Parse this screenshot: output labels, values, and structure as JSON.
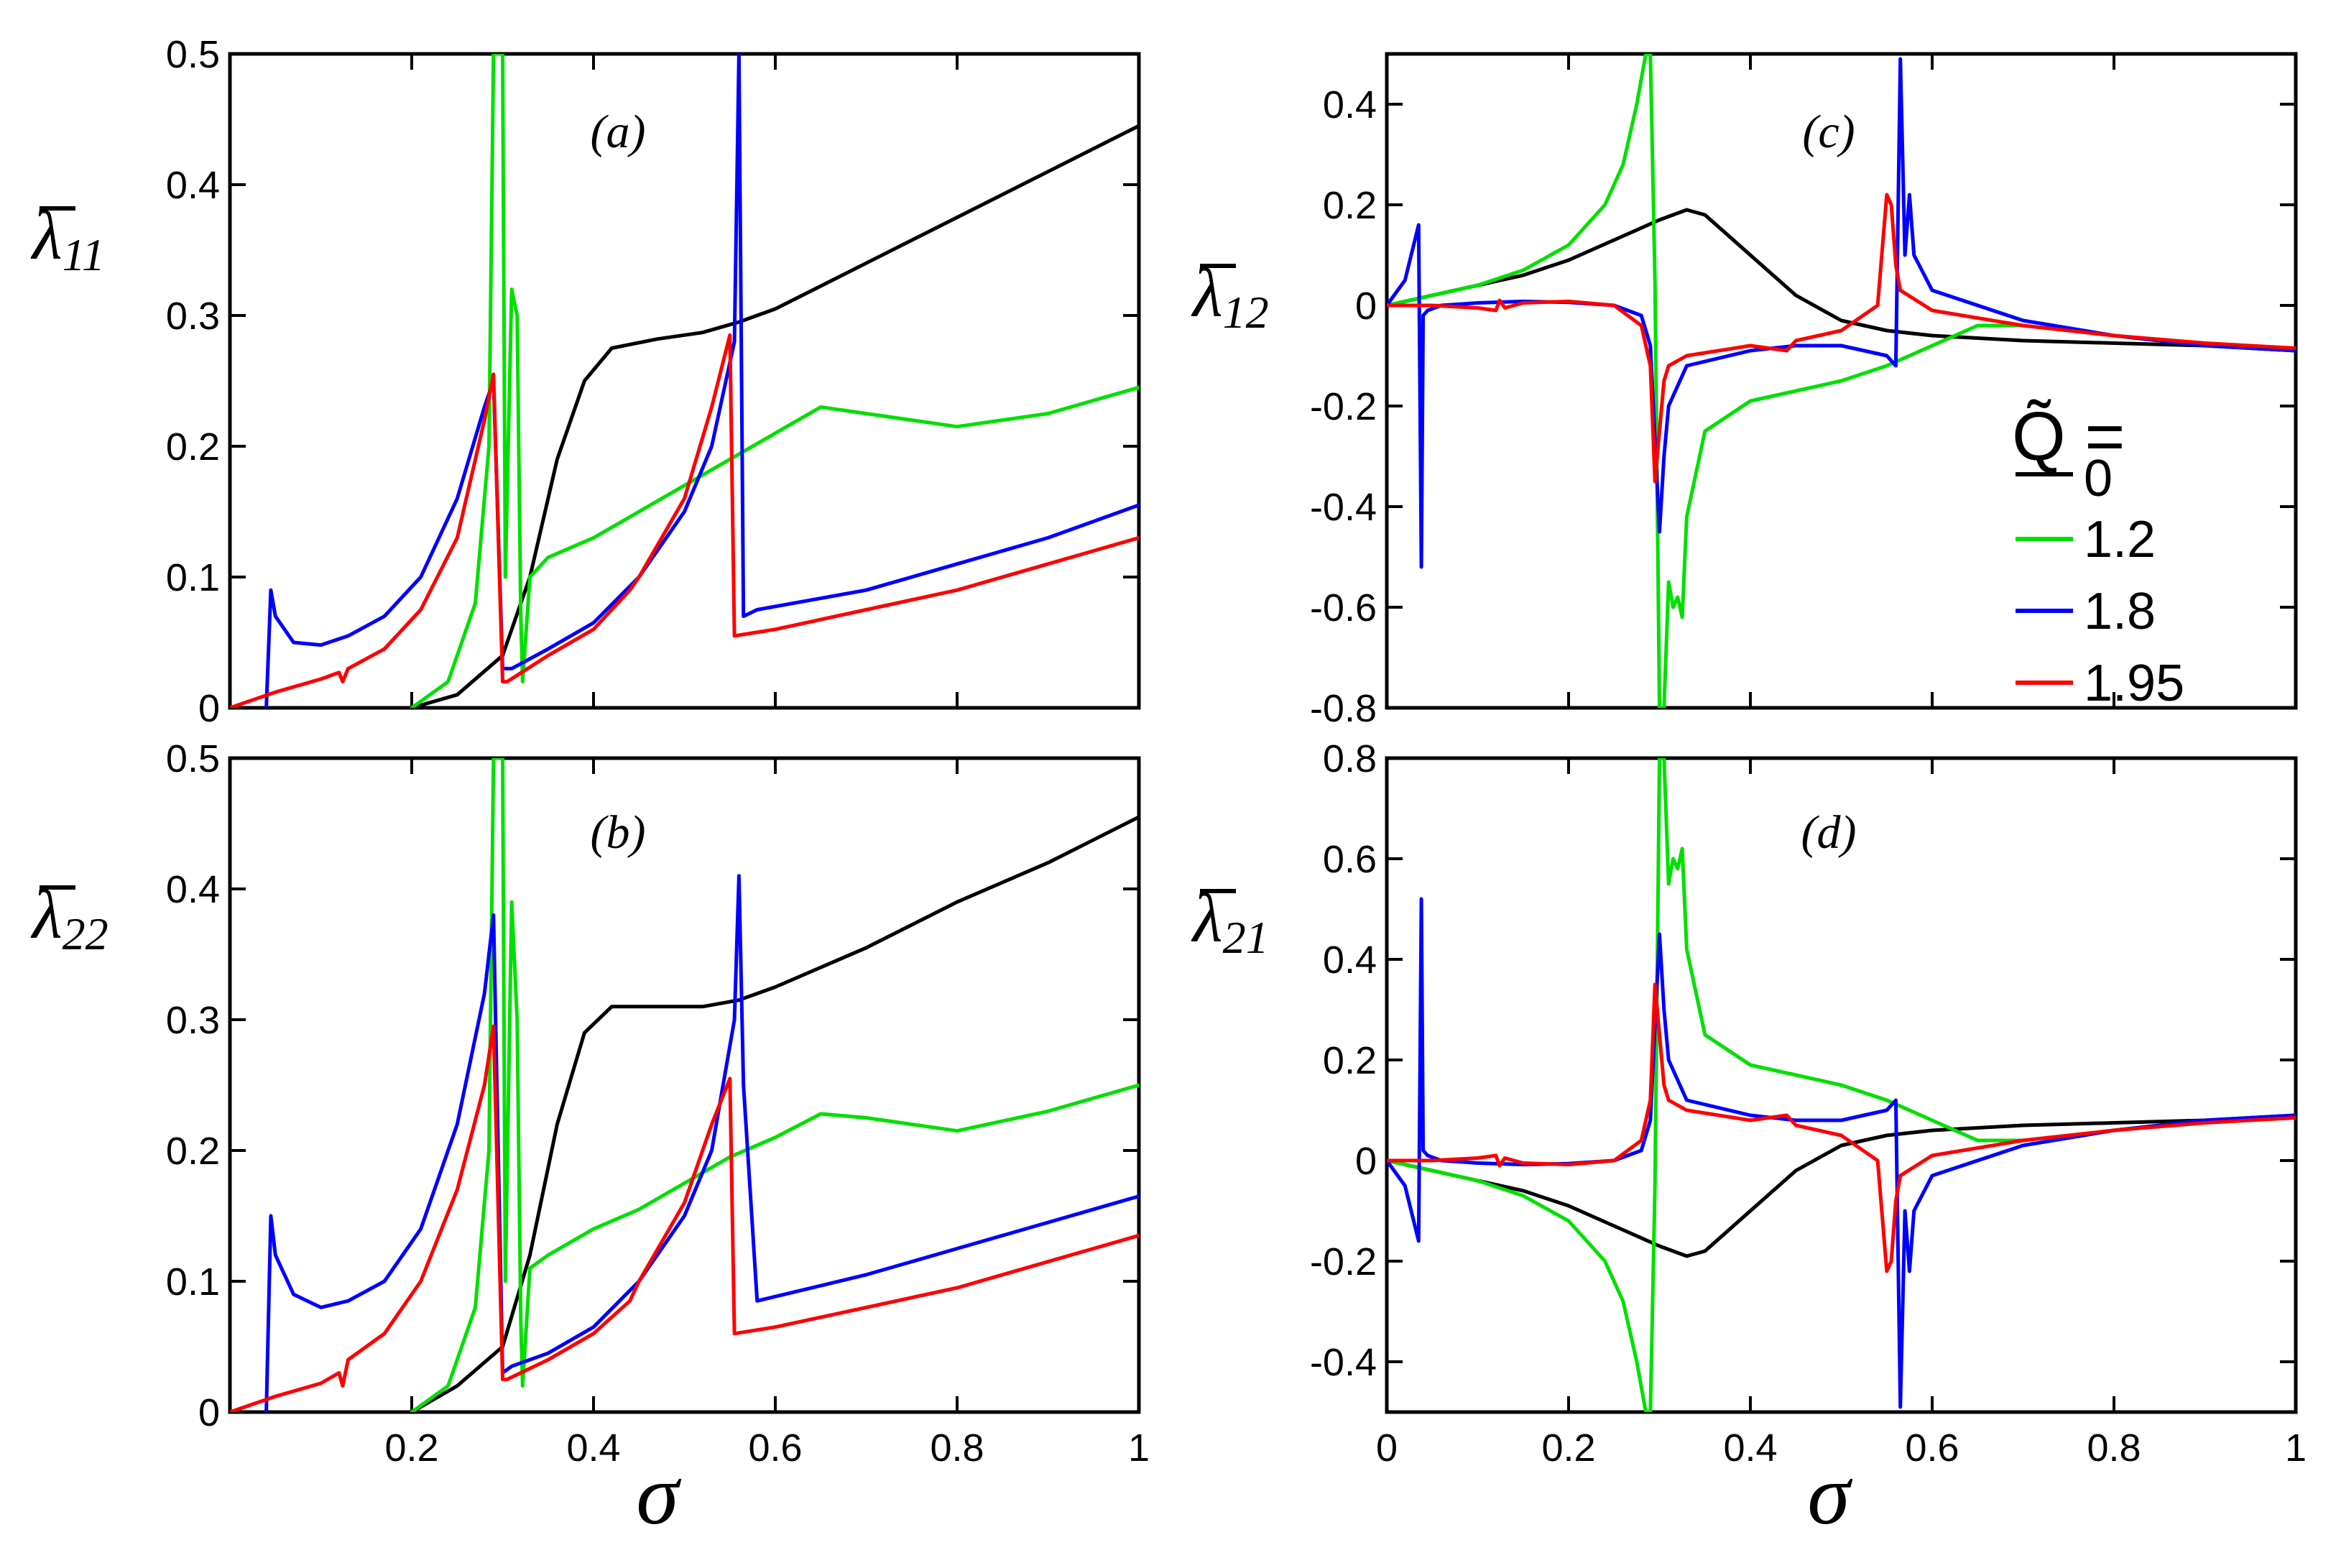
{
  "figure": {
    "xlabel": "σ",
    "legend": {
      "title": "Q̃ =",
      "entries": [
        {
          "label": "0",
          "color": "#000000"
        },
        {
          "label": "1.2",
          "color": "#00e000"
        },
        {
          "label": "1.8",
          "color": "#0000ff"
        },
        {
          "label": "1.95",
          "color": "#ff0000"
        }
      ]
    }
  },
  "chart_data": [
    {
      "type": "line",
      "panel": "(a)",
      "ylabel": "λ",
      "ylabel_sub": "11",
      "xlim": [
        0,
        1
      ],
      "ylim": [
        0,
        0.5
      ],
      "xticks": [
        0.2,
        0.4,
        0.6,
        0.8,
        1
      ],
      "xtick_labels": [
        "",
        "",
        "",
        "",
        ""
      ],
      "yticks": [
        0,
        0.1,
        0.2,
        0.3,
        0.4,
        0.5
      ],
      "ytick_labels": [
        "0",
        "0.1",
        "0.2",
        "0.3",
        "0.4",
        "0.5"
      ],
      "series": [
        {
          "name": "0",
          "color": "#000000",
          "x": [
            0.2,
            0.25,
            0.3,
            0.33,
            0.36,
            0.39,
            0.42,
            0.47,
            0.52,
            0.56,
            0.6,
            0.7,
            0.8,
            0.9,
            1.0
          ],
          "y": [
            0.0,
            0.01,
            0.04,
            0.1,
            0.19,
            0.25,
            0.275,
            0.282,
            0.287,
            0.295,
            0.305,
            0.34,
            0.375,
            0.41,
            0.445
          ]
        },
        {
          "name": "1.2",
          "color": "#00e000",
          "x": [
            0.2,
            0.24,
            0.27,
            0.285,
            0.29,
            0.3,
            0.303,
            0.31,
            0.316,
            0.32,
            0.322,
            0.33,
            0.35,
            0.4,
            0.45,
            0.5,
            0.55,
            0.6,
            0.65,
            0.7,
            0.8,
            0.9,
            1.0
          ],
          "y": [
            0.0,
            0.02,
            0.08,
            0.2,
            0.5,
            0.5,
            0.1,
            0.32,
            0.3,
            0.07,
            0.02,
            0.1,
            0.115,
            0.13,
            0.15,
            0.17,
            0.19,
            0.21,
            0.23,
            0.225,
            0.215,
            0.225,
            0.245
          ]
        },
        {
          "name": "1.8",
          "color": "#0000ff",
          "x": [
            0.04,
            0.045,
            0.05,
            0.07,
            0.1,
            0.13,
            0.17,
            0.21,
            0.25,
            0.28,
            0.29,
            0.3,
            0.31,
            0.35,
            0.4,
            0.45,
            0.5,
            0.53,
            0.555,
            0.56,
            0.565,
            0.58,
            0.7,
            0.8,
            0.9,
            1.0
          ],
          "y": [
            0.0,
            0.09,
            0.07,
            0.05,
            0.048,
            0.055,
            0.07,
            0.1,
            0.16,
            0.23,
            0.25,
            0.03,
            0.03,
            0.045,
            0.065,
            0.1,
            0.15,
            0.2,
            0.28,
            0.5,
            0.07,
            0.075,
            0.09,
            0.11,
            0.13,
            0.155
          ]
        },
        {
          "name": "1.95",
          "color": "#ff0000",
          "x": [
            0.0,
            0.05,
            0.1,
            0.12,
            0.124,
            0.13,
            0.17,
            0.21,
            0.25,
            0.28,
            0.29,
            0.3,
            0.305,
            0.35,
            0.4,
            0.44,
            0.45,
            0.5,
            0.53,
            0.55,
            0.555,
            0.6,
            0.7,
            0.8,
            0.9,
            1.0
          ],
          "y": [
            0.0,
            0.012,
            0.022,
            0.027,
            0.02,
            0.03,
            0.045,
            0.075,
            0.13,
            0.22,
            0.255,
            0.02,
            0.02,
            0.04,
            0.06,
            0.09,
            0.1,
            0.16,
            0.23,
            0.285,
            0.055,
            0.06,
            0.075,
            0.09,
            0.11,
            0.13
          ]
        }
      ]
    },
    {
      "type": "line",
      "panel": "(b)",
      "ylabel": "λ",
      "ylabel_sub": "22",
      "xlim": [
        0,
        1
      ],
      "ylim": [
        0,
        0.5
      ],
      "xticks": [
        0.2,
        0.4,
        0.6,
        0.8,
        1
      ],
      "xtick_labels": [
        "0.2",
        "0.4",
        "0.6",
        "0.8",
        "1"
      ],
      "yticks": [
        0,
        0.1,
        0.2,
        0.3,
        0.4,
        0.5
      ],
      "ytick_labels": [
        "0",
        "0.1",
        "0.2",
        "0.3",
        "0.4",
        "0.5"
      ],
      "series": [
        {
          "name": "0",
          "color": "#000000",
          "x": [
            0.2,
            0.25,
            0.3,
            0.33,
            0.36,
            0.39,
            0.42,
            0.47,
            0.52,
            0.56,
            0.6,
            0.7,
            0.8,
            0.9,
            1.0
          ],
          "y": [
            0.0,
            0.02,
            0.05,
            0.12,
            0.22,
            0.29,
            0.31,
            0.31,
            0.31,
            0.315,
            0.325,
            0.355,
            0.39,
            0.42,
            0.455
          ]
        },
        {
          "name": "1.2",
          "color": "#00e000",
          "x": [
            0.2,
            0.24,
            0.27,
            0.285,
            0.29,
            0.3,
            0.303,
            0.31,
            0.316,
            0.32,
            0.322,
            0.33,
            0.35,
            0.4,
            0.45,
            0.5,
            0.55,
            0.6,
            0.65,
            0.7,
            0.8,
            0.9,
            1.0
          ],
          "y": [
            0.0,
            0.02,
            0.08,
            0.2,
            0.5,
            0.5,
            0.1,
            0.39,
            0.3,
            0.07,
            0.02,
            0.11,
            0.12,
            0.14,
            0.155,
            0.175,
            0.195,
            0.21,
            0.228,
            0.225,
            0.215,
            0.23,
            0.25
          ]
        },
        {
          "name": "1.8",
          "color": "#0000ff",
          "x": [
            0.04,
            0.045,
            0.05,
            0.07,
            0.1,
            0.13,
            0.17,
            0.21,
            0.25,
            0.28,
            0.29,
            0.3,
            0.31,
            0.35,
            0.4,
            0.45,
            0.5,
            0.53,
            0.555,
            0.56,
            0.565,
            0.58,
            0.7,
            0.8,
            0.9,
            1.0
          ],
          "y": [
            0.0,
            0.15,
            0.12,
            0.09,
            0.08,
            0.085,
            0.1,
            0.14,
            0.22,
            0.32,
            0.38,
            0.03,
            0.035,
            0.045,
            0.065,
            0.1,
            0.15,
            0.2,
            0.3,
            0.41,
            0.25,
            0.085,
            0.105,
            0.125,
            0.145,
            0.165
          ]
        },
        {
          "name": "1.95",
          "color": "#ff0000",
          "x": [
            0.0,
            0.05,
            0.1,
            0.12,
            0.124,
            0.13,
            0.17,
            0.21,
            0.25,
            0.28,
            0.29,
            0.3,
            0.305,
            0.35,
            0.4,
            0.44,
            0.45,
            0.5,
            0.53,
            0.55,
            0.555,
            0.6,
            0.7,
            0.8,
            0.9,
            1.0
          ],
          "y": [
            0.0,
            0.012,
            0.022,
            0.03,
            0.02,
            0.04,
            0.06,
            0.1,
            0.17,
            0.25,
            0.295,
            0.025,
            0.025,
            0.04,
            0.06,
            0.085,
            0.1,
            0.16,
            0.22,
            0.255,
            0.06,
            0.065,
            0.08,
            0.095,
            0.115,
            0.135
          ]
        }
      ]
    },
    {
      "type": "line",
      "panel": "(c)",
      "ylabel": "λ",
      "ylabel_sub": "12",
      "xlim": [
        0,
        1
      ],
      "ylim": [
        -0.8,
        0.5
      ],
      "xticks": [
        0.2,
        0.4,
        0.6,
        0.8,
        1
      ],
      "xtick_labels": [
        "",
        "",
        "",
        "",
        ""
      ],
      "yticks": [
        -0.8,
        -0.6,
        -0.4,
        -0.2,
        0,
        0.2,
        0.4
      ],
      "ytick_labels": [
        "-0.8",
        "-0.6",
        "-0.4",
        "-0.2",
        "0",
        "0.2",
        "0.4"
      ],
      "series": [
        {
          "name": "0",
          "color": "#000000",
          "x": [
            0.0,
            0.05,
            0.1,
            0.15,
            0.2,
            0.25,
            0.3,
            0.33,
            0.35,
            0.4,
            0.45,
            0.5,
            0.55,
            0.6,
            0.7,
            0.8,
            0.9,
            1.0
          ],
          "y": [
            0.0,
            0.02,
            0.04,
            0.06,
            0.09,
            0.13,
            0.17,
            0.19,
            0.18,
            0.1,
            0.02,
            -0.03,
            -0.05,
            -0.06,
            -0.07,
            -0.075,
            -0.08,
            -0.09
          ]
        },
        {
          "name": "1.2",
          "color": "#00e000",
          "x": [
            0.0,
            0.05,
            0.1,
            0.15,
            0.2,
            0.24,
            0.26,
            0.275,
            0.285,
            0.29,
            0.295,
            0.3,
            0.305,
            0.31,
            0.315,
            0.32,
            0.325,
            0.33,
            0.35,
            0.4,
            0.45,
            0.5,
            0.55,
            0.6,
            0.65,
            0.7,
            0.8,
            0.9,
            1.0
          ],
          "y": [
            0.0,
            0.02,
            0.04,
            0.07,
            0.12,
            0.2,
            0.28,
            0.4,
            0.5,
            0.5,
            0.05,
            -0.8,
            -0.8,
            -0.55,
            -0.6,
            -0.58,
            -0.62,
            -0.42,
            -0.25,
            -0.19,
            -0.17,
            -0.15,
            -0.12,
            -0.08,
            -0.04,
            -0.04,
            -0.06,
            -0.08,
            -0.09
          ]
        },
        {
          "name": "1.8",
          "color": "#0000ff",
          "x": [
            0.0,
            0.02,
            0.035,
            0.038,
            0.04,
            0.045,
            0.06,
            0.1,
            0.15,
            0.2,
            0.25,
            0.28,
            0.29,
            0.3,
            0.305,
            0.31,
            0.33,
            0.4,
            0.45,
            0.5,
            0.55,
            0.56,
            0.565,
            0.57,
            0.575,
            0.58,
            0.6,
            0.7,
            0.8,
            0.9,
            1.0
          ],
          "y": [
            0.0,
            0.05,
            0.16,
            -0.52,
            -0.02,
            -0.01,
            0.0,
            0.005,
            0.008,
            0.006,
            0.0,
            -0.02,
            -0.08,
            -0.45,
            -0.3,
            -0.2,
            -0.12,
            -0.09,
            -0.08,
            -0.08,
            -0.1,
            -0.12,
            0.49,
            0.1,
            0.22,
            0.1,
            0.03,
            -0.03,
            -0.06,
            -0.08,
            -0.09
          ]
        },
        {
          "name": "1.95",
          "color": "#ff0000",
          "x": [
            0.0,
            0.05,
            0.1,
            0.12,
            0.124,
            0.13,
            0.15,
            0.2,
            0.25,
            0.28,
            0.29,
            0.295,
            0.3,
            0.305,
            0.31,
            0.33,
            0.4,
            0.44,
            0.45,
            0.5,
            0.54,
            0.55,
            0.555,
            0.56,
            0.565,
            0.6,
            0.7,
            0.8,
            0.9,
            1.0
          ],
          "y": [
            0.0,
            0.0,
            -0.005,
            -0.01,
            0.01,
            -0.005,
            0.005,
            0.008,
            0.0,
            -0.04,
            -0.12,
            -0.35,
            -0.25,
            -0.15,
            -0.12,
            -0.1,
            -0.08,
            -0.09,
            -0.07,
            -0.05,
            0.0,
            0.22,
            0.2,
            0.08,
            0.03,
            -0.01,
            -0.04,
            -0.06,
            -0.075,
            -0.085
          ]
        }
      ]
    },
    {
      "type": "line",
      "panel": "(d)",
      "ylabel": "λ",
      "ylabel_sub": "21",
      "xlim": [
        0,
        1
      ],
      "ylim": [
        -0.5,
        0.8
      ],
      "xticks": [
        0,
        0.2,
        0.4,
        0.6,
        0.8,
        1
      ],
      "xtick_labels": [
        "0",
        "0.2",
        "0.4",
        "0.6",
        "0.8",
        "1"
      ],
      "yticks": [
        -0.4,
        -0.2,
        0,
        0.2,
        0.4,
        0.6,
        0.8
      ],
      "ytick_labels": [
        "-0.4",
        "-0.2",
        "0",
        "0.2",
        "0.4",
        "0.6",
        "0.8"
      ],
      "series": [
        {
          "name": "0",
          "color": "#000000",
          "x": [
            0.0,
            0.05,
            0.1,
            0.15,
            0.2,
            0.25,
            0.3,
            0.33,
            0.35,
            0.4,
            0.45,
            0.5,
            0.55,
            0.6,
            0.7,
            0.8,
            0.9,
            1.0
          ],
          "y": [
            0.0,
            -0.02,
            -0.04,
            -0.06,
            -0.09,
            -0.13,
            -0.17,
            -0.19,
            -0.18,
            -0.1,
            -0.02,
            0.03,
            0.05,
            0.06,
            0.07,
            0.075,
            0.08,
            0.09
          ]
        },
        {
          "name": "1.2",
          "color": "#00e000",
          "x": [
            0.0,
            0.05,
            0.1,
            0.15,
            0.2,
            0.24,
            0.26,
            0.275,
            0.285,
            0.29,
            0.295,
            0.3,
            0.305,
            0.31,
            0.315,
            0.32,
            0.325,
            0.33,
            0.35,
            0.4,
            0.45,
            0.5,
            0.55,
            0.6,
            0.65,
            0.7,
            0.8,
            0.9,
            1.0
          ],
          "y": [
            0.0,
            -0.02,
            -0.04,
            -0.07,
            -0.12,
            -0.2,
            -0.28,
            -0.4,
            -0.5,
            -0.5,
            -0.05,
            0.8,
            0.8,
            0.55,
            0.6,
            0.58,
            0.62,
            0.42,
            0.25,
            0.19,
            0.17,
            0.15,
            0.12,
            0.08,
            0.04,
            0.04,
            0.06,
            0.08,
            0.09
          ]
        },
        {
          "name": "1.8",
          "color": "#0000ff",
          "x": [
            0.0,
            0.02,
            0.035,
            0.038,
            0.04,
            0.045,
            0.06,
            0.1,
            0.15,
            0.2,
            0.25,
            0.28,
            0.29,
            0.3,
            0.305,
            0.31,
            0.33,
            0.4,
            0.45,
            0.5,
            0.55,
            0.56,
            0.565,
            0.57,
            0.575,
            0.58,
            0.6,
            0.7,
            0.8,
            0.9,
            1.0
          ],
          "y": [
            0.0,
            -0.05,
            -0.16,
            0.52,
            0.02,
            0.01,
            0.0,
            -0.005,
            -0.008,
            -0.006,
            0.0,
            0.02,
            0.08,
            0.45,
            0.3,
            0.2,
            0.12,
            0.09,
            0.08,
            0.08,
            0.1,
            0.12,
            -0.49,
            -0.1,
            -0.22,
            -0.1,
            -0.03,
            0.03,
            0.06,
            0.08,
            0.09
          ]
        },
        {
          "name": "1.95",
          "color": "#ff0000",
          "x": [
            0.0,
            0.05,
            0.1,
            0.12,
            0.124,
            0.13,
            0.15,
            0.2,
            0.25,
            0.28,
            0.29,
            0.295,
            0.3,
            0.305,
            0.31,
            0.33,
            0.4,
            0.44,
            0.45,
            0.5,
            0.54,
            0.55,
            0.555,
            0.56,
            0.565,
            0.6,
            0.7,
            0.8,
            0.9,
            1.0
          ],
          "y": [
            0.0,
            0.0,
            0.005,
            0.01,
            -0.01,
            0.005,
            -0.005,
            -0.008,
            0.0,
            0.04,
            0.12,
            0.35,
            0.25,
            0.15,
            0.12,
            0.1,
            0.08,
            0.09,
            0.07,
            0.05,
            0.0,
            -0.22,
            -0.2,
            -0.08,
            -0.03,
            0.01,
            0.04,
            0.06,
            0.075,
            0.085
          ]
        }
      ]
    }
  ]
}
